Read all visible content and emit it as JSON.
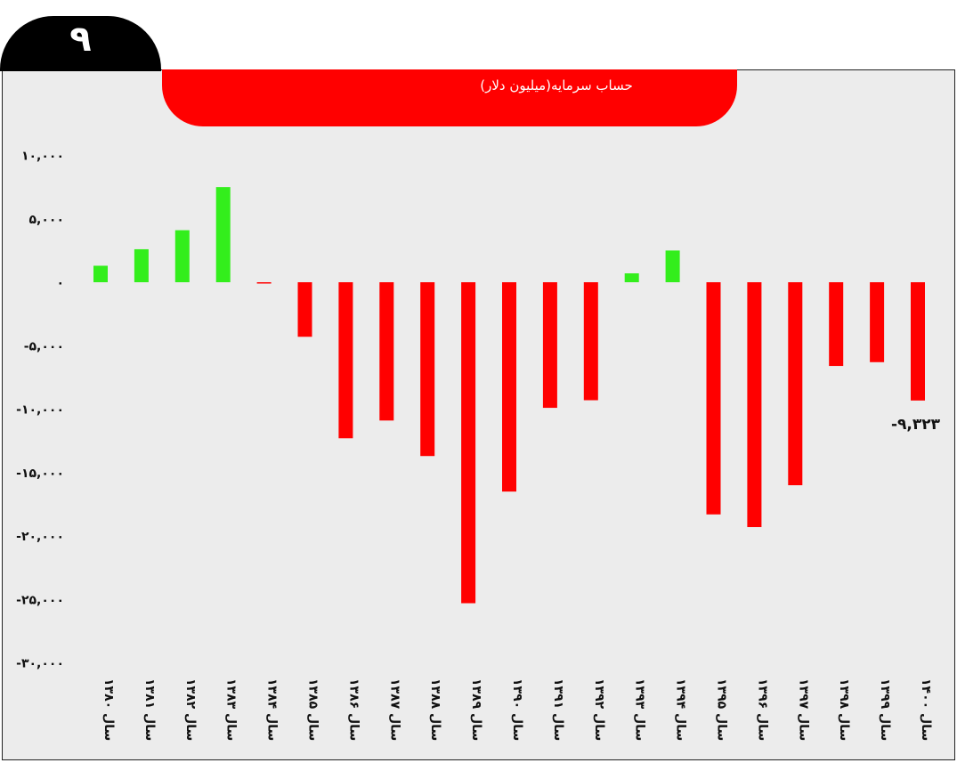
{
  "page": {
    "badge_number": "۹",
    "title": "حساب سرمایه(میلیون دلار)"
  },
  "colors": {
    "positive": "#33ee1c",
    "negative": "#ff0000",
    "title_bg": "#ff0000",
    "badge_bg": "#000000",
    "plot_bg": "#ececec"
  },
  "chart_data": {
    "type": "bar",
    "title": "حساب سرمایه(میلیون دلار)",
    "categories": [
      "سال ۱۳۸۰",
      "سال ۱۳۸۱",
      "سال ۱۳۸۲",
      "سال ۱۳۸۳",
      "سال ۱۳۸۴",
      "سال ۱۳۸۵",
      "سال ۱۳۸۶",
      "سال ۱۳۸۷",
      "سال ۱۳۸۸",
      "سال ۱۳۸۹",
      "سال ۱۳۹۰",
      "سال ۱۳۹۱",
      "سال ۱۳۹۲",
      "سال ۱۳۹۳",
      "سال ۱۳۹۴",
      "سال ۱۳۹۵",
      "سال ۱۳۹۶",
      "سال ۱۳۹۷",
      "سال ۱۳۹۸",
      "سال ۱۳۹۹",
      "سال ۱۴۰۰"
    ],
    "values": [
      1300,
      2600,
      4100,
      7500,
      -100,
      -4300,
      -12300,
      -10900,
      -13700,
      -25300,
      -16500,
      -9900,
      -9300,
      700,
      2500,
      -18300,
      -19300,
      -16000,
      -6600,
      -6300,
      -9323
    ],
    "ylim": [
      -30000,
      10000
    ],
    "yticks": [
      10000,
      5000,
      0,
      -5000,
      -10000,
      -15000,
      -20000,
      -25000,
      -30000
    ],
    "ytick_labels": [
      "۱۰,۰۰۰",
      "۵,۰۰۰",
      "۰",
      "-۵,۰۰۰",
      "-۱۰,۰۰۰",
      "-۱۵,۰۰۰",
      "-۲۰,۰۰۰",
      "-۲۵,۰۰۰",
      "-۳۰,۰۰۰"
    ],
    "annotations": [
      {
        "category_index": 20,
        "text": "-۹,۳۲۳"
      }
    ],
    "grid": false,
    "xlabel": "",
    "ylabel": ""
  }
}
